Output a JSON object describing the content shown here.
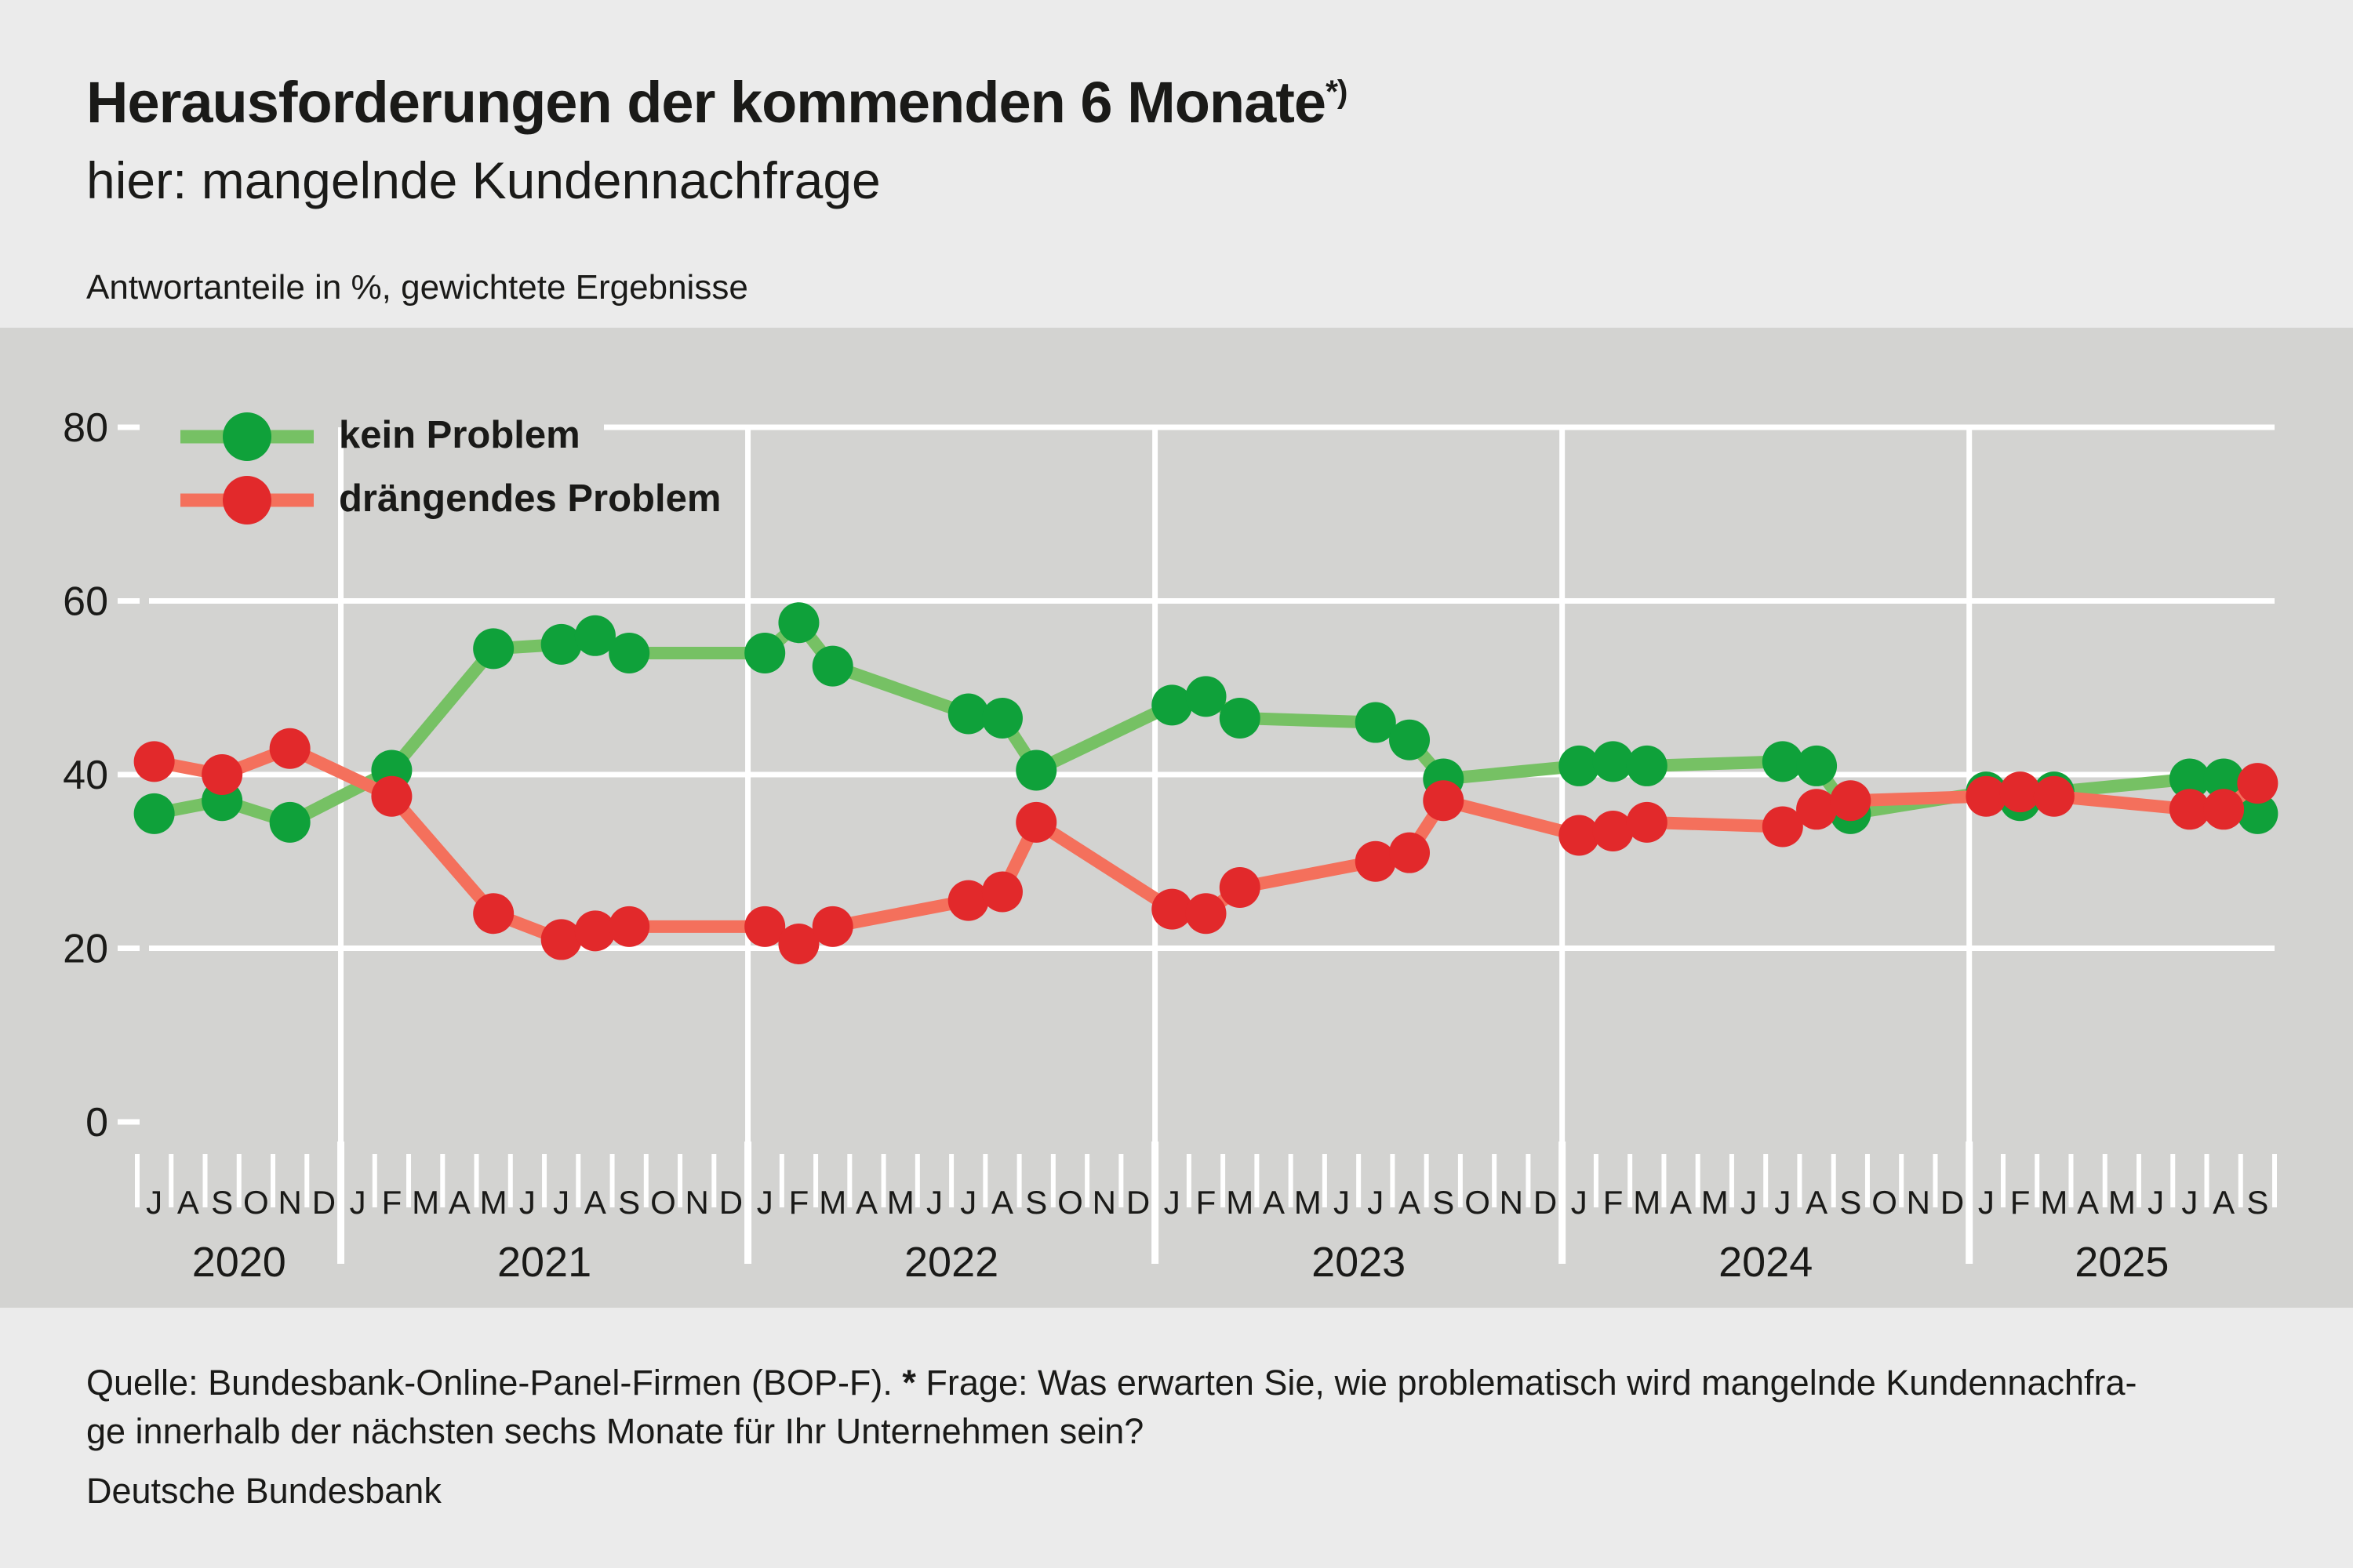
{
  "header": {
    "title": "Herausforderungen der kommenden 6 Monate",
    "title_sup": "*)",
    "subtitle": "hier: mangelnde Kundennachfrage",
    "note": "Antwortanteile in %, gewichtete Ergebnisse"
  },
  "legend": {
    "items": [
      {
        "label": "kein Problem",
        "line_color": "#76c164",
        "marker_color": "#0fa13a"
      },
      {
        "label": "drängendes Problem",
        "line_color": "#f4705c",
        "marker_color": "#e2292b"
      }
    ]
  },
  "footer": {
    "source": "Quelle: Bundesbank-Online-Panel-Firmen (BOP-F). ",
    "star": "*",
    "question_line1": " Frage: Was erwarten Sie, wie problematisch wird mangelnde Kundennachfra-",
    "question_line2": "ge innerhalb der nächsten sechs Monate für Ihr Unternehmen sein?",
    "brand": "Deutsche Bundesbank"
  },
  "colors": {
    "page_background": "#ebebeb",
    "panel_background": "#d3d3d1",
    "gridline": "#ffffff",
    "text": "#1a1a18",
    "green_line": "#76c164",
    "green_marker": "#0fa13a",
    "red_line": "#f4705c",
    "red_marker": "#e2292b"
  },
  "chart_data": {
    "type": "line",
    "title": "Herausforderungen der kommenden 6 Monate – hier: mangelnde Kundennachfrage",
    "unit": "%",
    "ylim": [
      0,
      80
    ],
    "yticks": [
      0,
      20,
      40,
      60,
      80
    ],
    "grid": "white horizontal lines at 20/40/60/80, vertical white lines at year boundaries",
    "legend_position": "top-left",
    "x_axis": {
      "months": [
        "J",
        "A",
        "S",
        "O",
        "N",
        "D",
        "J",
        "F",
        "M",
        "A",
        "M",
        "J",
        "J",
        "A",
        "S",
        "O",
        "N",
        "D",
        "J",
        "F",
        "M",
        "A",
        "M",
        "J",
        "J",
        "A",
        "S",
        "O",
        "N",
        "D",
        "J",
        "F",
        "M",
        "A",
        "M",
        "J",
        "J",
        "A",
        "S",
        "O",
        "N",
        "D",
        "J",
        "F",
        "M",
        "A",
        "M",
        "J",
        "J",
        "A",
        "S",
        "O",
        "N",
        "D",
        "J",
        "F",
        "M",
        "A",
        "M",
        "J",
        "J",
        "A",
        "S"
      ],
      "years": [
        {
          "label": "2020",
          "n_months": 6
        },
        {
          "label": "2021",
          "n_months": 12
        },
        {
          "label": "2022",
          "n_months": 12
        },
        {
          "label": "2023",
          "n_months": 12
        },
        {
          "label": "2024",
          "n_months": 12
        },
        {
          "label": "2025",
          "n_months": 9
        }
      ]
    },
    "survey_month_indices": [
      0,
      2,
      4,
      7,
      10,
      12,
      13,
      14,
      18,
      19,
      20,
      24,
      25,
      26,
      30,
      31,
      32,
      36,
      37,
      38,
      42,
      43,
      44,
      48,
      49,
      50,
      54,
      55,
      56,
      60,
      61,
      62
    ],
    "point_dates": [
      "Jul 2020",
      "Sep 2020",
      "Nov 2020",
      "Feb 2021",
      "Mai 2021",
      "Jul 2021",
      "Aug 2021",
      "Sep 2021",
      "Jan 2022",
      "Feb 2022",
      "Mär 2022",
      "Jul 2022",
      "Aug 2022",
      "Sep 2022",
      "Jan 2023",
      "Feb 2023",
      "Mär 2023",
      "Jul 2023",
      "Aug 2023",
      "Sep 2023",
      "Jan 2024",
      "Feb 2024",
      "Mär 2024",
      "Jul 2024",
      "Aug 2024",
      "Sep 2024",
      "Jan 2025",
      "Feb 2025",
      "Mär 2025",
      "Jul 2025",
      "Aug 2025",
      "Sep 2025"
    ],
    "series": [
      {
        "name": "kein Problem",
        "line_color": "#76c164",
        "marker_color": "#0fa13a",
        "values": [
          35.5,
          37,
          34.5,
          40.5,
          54.5,
          55,
          56,
          54,
          54,
          57.5,
          52.5,
          47,
          46.5,
          40.5,
          48,
          49,
          46.5,
          46,
          44,
          39.5,
          41,
          41.5,
          41,
          41.5,
          41,
          35.5,
          38,
          37,
          38,
          39.5,
          39.5,
          35.5
        ]
      },
      {
        "name": "drängendes Problem",
        "line_color": "#f4705c",
        "marker_color": "#e2292b",
        "values": [
          41.5,
          40,
          43,
          37.5,
          24,
          21,
          22,
          22.5,
          22.5,
          20.5,
          22.5,
          25.5,
          26.5,
          34.5,
          24.5,
          24,
          27,
          30,
          31,
          37,
          33,
          33.5,
          34.5,
          34,
          36,
          37,
          37.5,
          38,
          37.5,
          36,
          36,
          39
        ]
      }
    ]
  }
}
